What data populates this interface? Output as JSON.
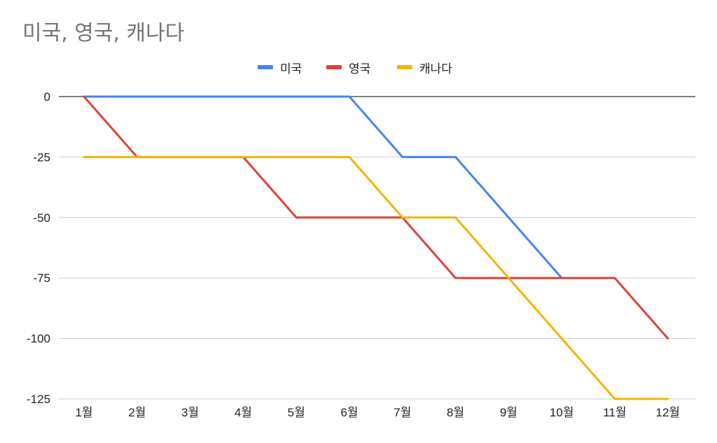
{
  "chart_data": {
    "type": "line",
    "title": "미국, 영국, 캐나다",
    "xlabel": "",
    "ylabel": "",
    "categories": [
      "1월",
      "2월",
      "3월",
      "4월",
      "5월",
      "6월",
      "7월",
      "8월",
      "9월",
      "10월",
      "11월",
      "12월"
    ],
    "series": [
      {
        "name": "미국",
        "color": "#4285f4",
        "values": [
          0,
          0,
          0,
          0,
          0,
          0,
          -25,
          -25,
          -50,
          -75,
          null,
          null
        ]
      },
      {
        "name": "영국",
        "color": "#db4437",
        "values": [
          0,
          -25,
          -25,
          -25,
          -50,
          -50,
          -50,
          -75,
          -75,
          -75,
          -75,
          -100
        ]
      },
      {
        "name": "캐나다",
        "color": "#f4b400",
        "values": [
          -25,
          -25,
          -25,
          -25,
          -25,
          -25,
          -50,
          -50,
          -75,
          -100,
          -125,
          -125
        ]
      }
    ],
    "ylim": [
      -125,
      0
    ],
    "yticks": [
      0,
      -25,
      -50,
      -75,
      -100,
      -125
    ],
    "grid": true,
    "legend": "top"
  }
}
